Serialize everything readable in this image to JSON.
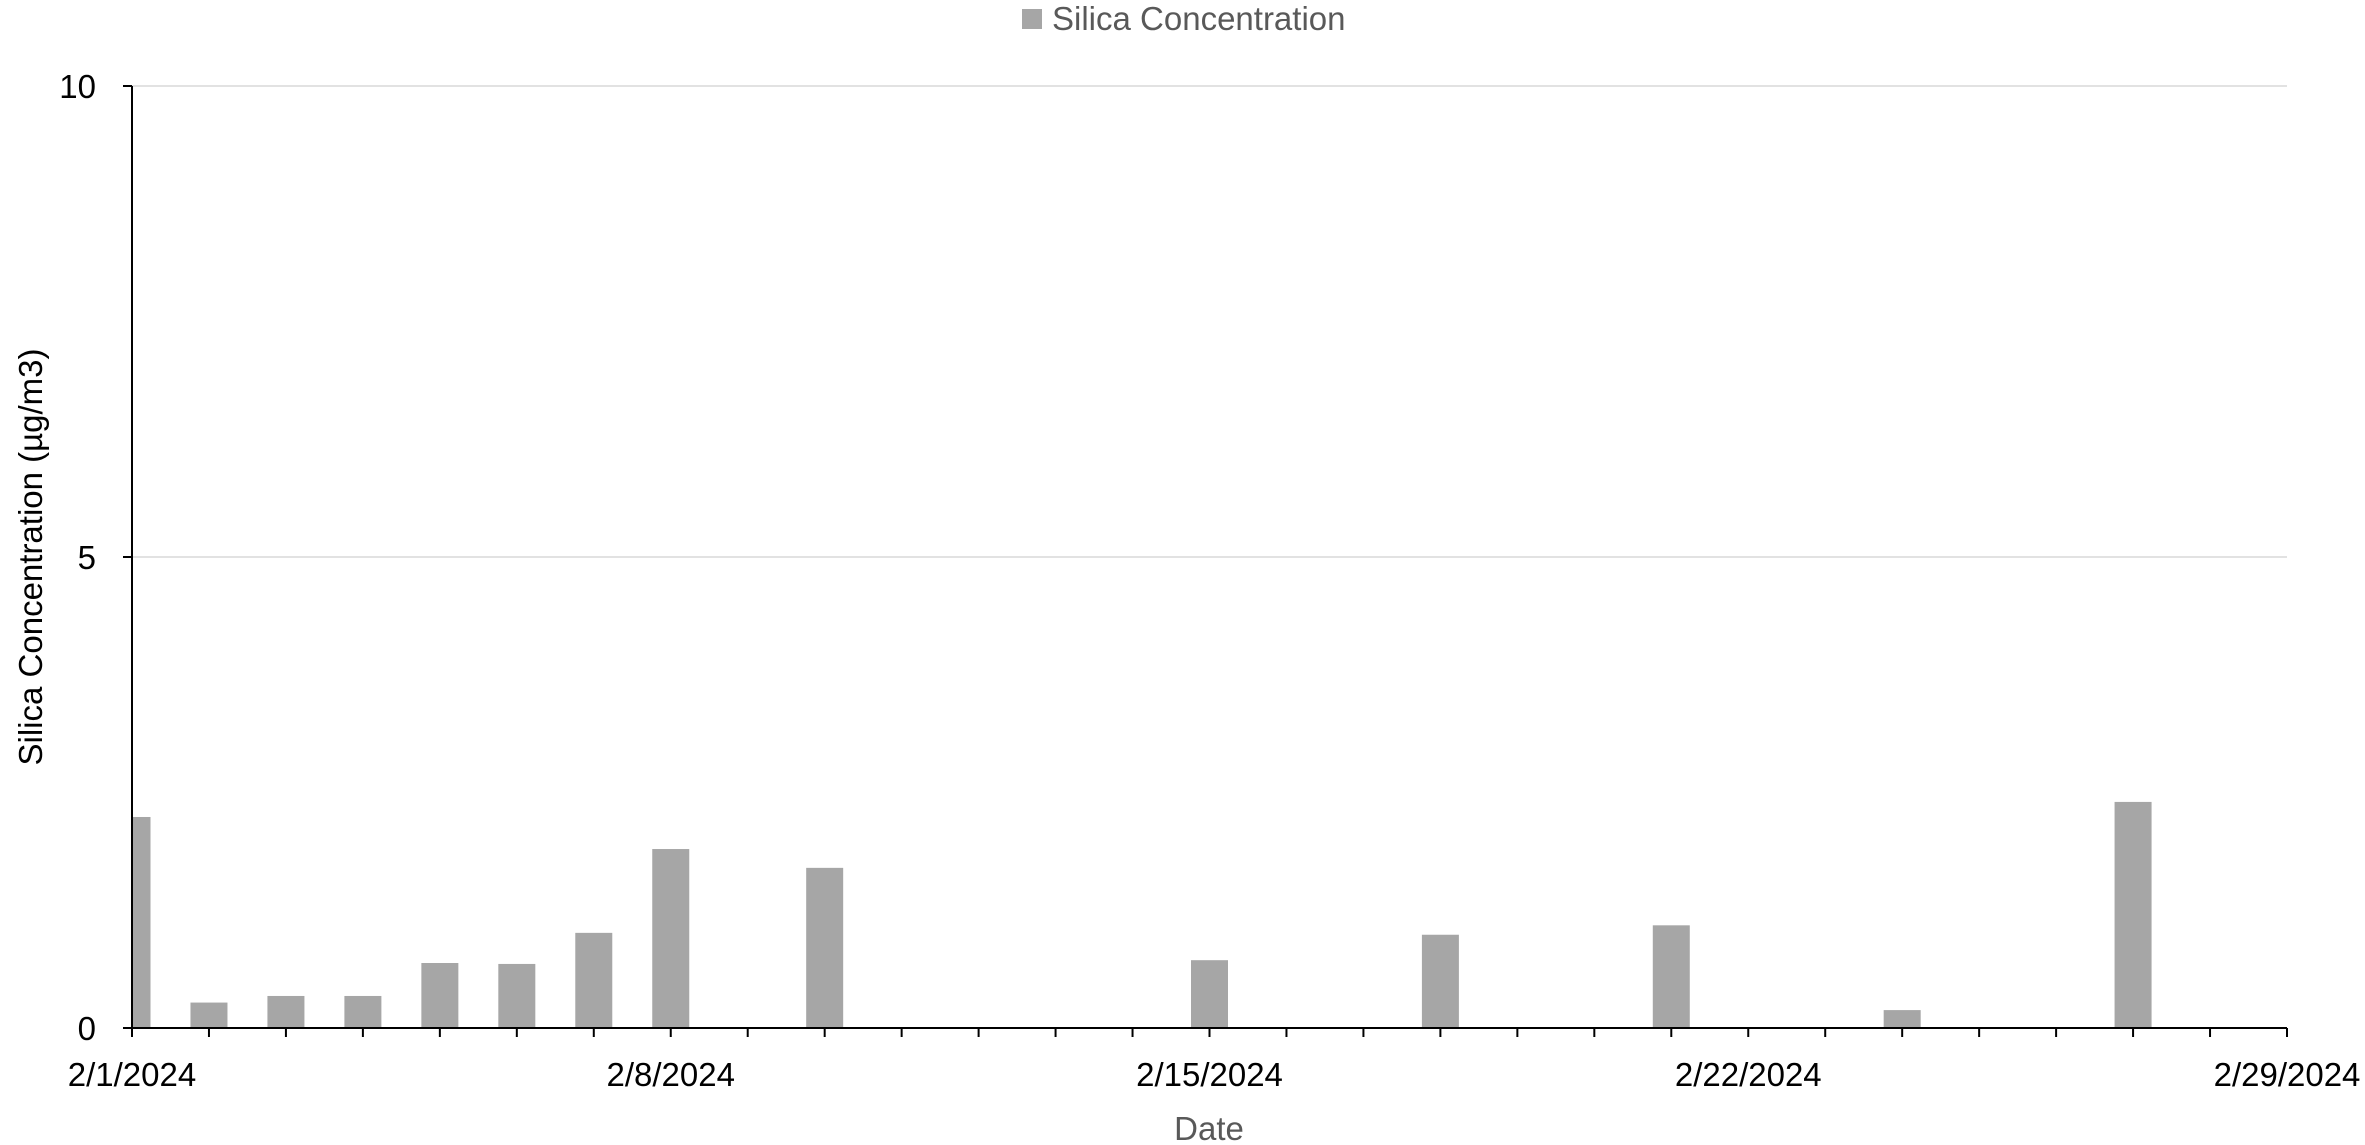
{
  "chart_data": {
    "type": "bar",
    "legend": {
      "position": "top",
      "entries": [
        "Silica Concentration"
      ]
    },
    "xlabel": "Date",
    "ylabel": "Silica Concentration (µg/m3)",
    "ylim": [
      0,
      10
    ],
    "yticks": [
      "0",
      "5",
      "10"
    ],
    "xlim": [
      "2/1/2024",
      "2/29/2024"
    ],
    "xticks": [
      "2/1/2024",
      "2/8/2024",
      "2/15/2024",
      "2/22/2024",
      "2/29/2024"
    ],
    "grid": "horizontal",
    "series": [
      {
        "name": "Silica Concentration",
        "color": "#a6a6a6",
        "points": [
          {
            "x": "2/1/2024",
            "y": 2.24
          },
          {
            "x": "2/2/2024",
            "y": 0.27
          },
          {
            "x": "2/3/2024",
            "y": 0.34
          },
          {
            "x": "2/4/2024",
            "y": 0.34
          },
          {
            "x": "2/5/2024",
            "y": 0.69
          },
          {
            "x": "2/6/2024",
            "y": 0.68
          },
          {
            "x": "2/7/2024",
            "y": 1.01
          },
          {
            "x": "2/8/2024",
            "y": 1.9
          },
          {
            "x": "2/10/2024",
            "y": 1.7
          },
          {
            "x": "2/15/2024",
            "y": 0.72
          },
          {
            "x": "2/18/2024",
            "y": 0.99
          },
          {
            "x": "2/21/2024",
            "y": 1.09
          },
          {
            "x": "2/24/2024",
            "y": 0.19
          },
          {
            "x": "2/27/2024",
            "y": 2.4
          }
        ]
      }
    ]
  }
}
